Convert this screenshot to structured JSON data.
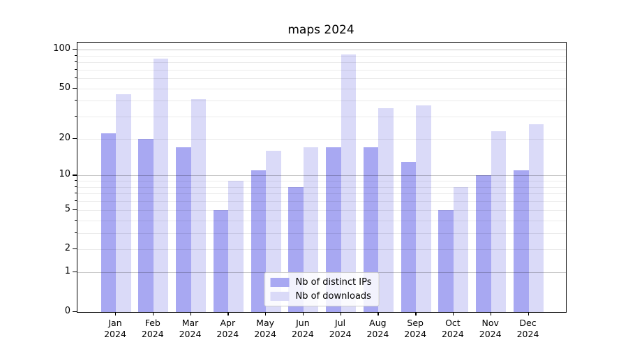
{
  "title": "maps 2024",
  "chart_data": {
    "type": "bar",
    "title": "maps 2024",
    "categories": [
      "Jan 2024",
      "Feb 2024",
      "Mar 2024",
      "Apr 2024",
      "May 2024",
      "Jun 2024",
      "Jul 2024",
      "Aug 2024",
      "Sep 2024",
      "Oct 2024",
      "Nov 2024",
      "Dec 2024"
    ],
    "series": [
      {
        "name": "Nb of distinct IPs",
        "color": "#a8a8f2",
        "values": [
          22,
          20,
          17,
          5,
          11,
          8,
          17,
          17,
          13,
          5,
          10,
          11
        ]
      },
      {
        "name": "Nb of downloads",
        "color": "#dadaf8",
        "values": [
          45,
          85,
          41,
          9,
          16,
          17,
          92,
          35,
          37,
          8,
          23,
          26
        ]
      }
    ],
    "yscale": "log1p",
    "ylim": [
      0,
      100
    ],
    "y_tick_labels": [
      100,
      50,
      20,
      10,
      5,
      2,
      1,
      0
    ],
    "y_gridlines_major": [
      1,
      10,
      100
    ],
    "y_gridlines_minor": [
      2,
      3,
      4,
      5,
      6,
      7,
      8,
      9,
      20,
      30,
      40,
      50,
      60,
      70,
      80,
      90
    ],
    "grid": true,
    "legend_position": "lower center"
  }
}
